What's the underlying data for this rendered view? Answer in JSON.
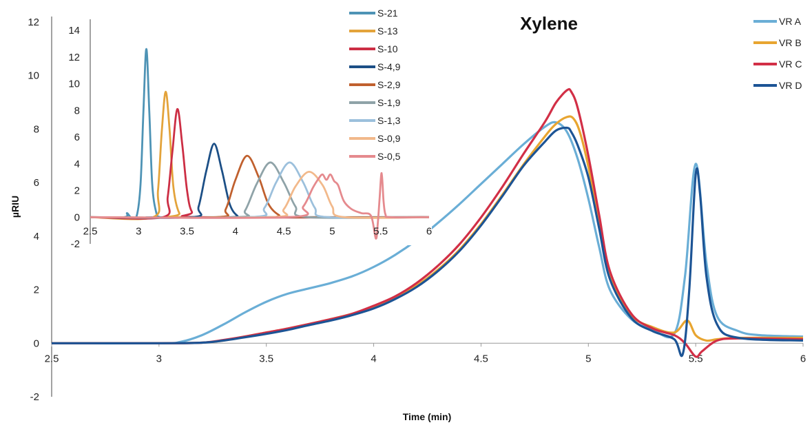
{
  "chart_data": [
    {
      "type": "line",
      "title": "Xylene",
      "xlabel": "Time (min)",
      "ylabel": "µRIU",
      "xlim": [
        2.5,
        6
      ],
      "ylim": [
        -2,
        12
      ],
      "xticks": [
        "2.5",
        "3",
        "3.5",
        "4",
        "4.5",
        "5",
        "5.5",
        "6"
      ],
      "yticks": [
        "-2",
        "0",
        "2",
        "4",
        "6",
        "8",
        "10",
        "12"
      ],
      "legend_position": "top-right",
      "series": [
        {
          "name": "VR A",
          "color": "#6aaed6",
          "x": [
            2.5,
            3.0,
            3.1,
            3.2,
            3.3,
            3.4,
            3.5,
            3.6,
            3.7,
            3.8,
            3.9,
            4.0,
            4.1,
            4.2,
            4.3,
            4.4,
            4.5,
            4.6,
            4.7,
            4.8,
            4.85,
            4.9,
            4.95,
            5.0,
            5.05,
            5.1,
            5.2,
            5.3,
            5.4,
            5.45,
            5.5,
            5.55,
            5.6,
            5.7,
            5.8,
            6.0
          ],
          "values": [
            0,
            0,
            0.05,
            0.3,
            0.7,
            1.15,
            1.55,
            1.85,
            2.05,
            2.25,
            2.5,
            2.85,
            3.3,
            3.85,
            4.5,
            5.2,
            5.95,
            6.7,
            7.45,
            8.1,
            8.25,
            7.9,
            6.9,
            5.4,
            3.6,
            2.0,
            0.9,
            0.5,
            0.35,
            2.5,
            6.7,
            3.0,
            1.0,
            0.45,
            0.3,
            0.25
          ]
        },
        {
          "name": "VR B",
          "color": "#e8a530",
          "x": [
            2.5,
            3.0,
            3.2,
            3.3,
            3.4,
            3.5,
            3.6,
            3.7,
            3.8,
            3.9,
            4.0,
            4.1,
            4.2,
            4.3,
            4.4,
            4.5,
            4.6,
            4.7,
            4.8,
            4.85,
            4.9,
            4.93,
            4.96,
            5.0,
            5.05,
            5.1,
            5.2,
            5.3,
            5.4,
            5.46,
            5.5,
            5.55,
            5.6,
            5.7,
            6.0
          ],
          "values": [
            0,
            0,
            0.02,
            0.1,
            0.25,
            0.4,
            0.55,
            0.72,
            0.9,
            1.1,
            1.35,
            1.7,
            2.15,
            2.75,
            3.5,
            4.45,
            5.55,
            6.7,
            7.75,
            8.2,
            8.45,
            8.4,
            7.9,
            6.6,
            4.5,
            2.5,
            1.05,
            0.6,
            0.4,
            0.85,
            0.3,
            0.1,
            0.15,
            0.2,
            0.2
          ]
        },
        {
          "name": "VR C",
          "color": "#d22f46",
          "x": [
            2.5,
            3.0,
            3.2,
            3.3,
            3.4,
            3.5,
            3.6,
            3.7,
            3.8,
            3.9,
            4.0,
            4.1,
            4.2,
            4.3,
            4.4,
            4.5,
            4.6,
            4.7,
            4.8,
            4.85,
            4.9,
            4.92,
            4.95,
            5.0,
            5.05,
            5.1,
            5.2,
            5.3,
            5.4,
            5.45,
            5.5,
            5.53,
            5.6,
            5.7,
            6.0
          ],
          "values": [
            0,
            0,
            0.02,
            0.12,
            0.25,
            0.4,
            0.55,
            0.72,
            0.9,
            1.1,
            1.4,
            1.75,
            2.25,
            2.9,
            3.7,
            4.7,
            5.85,
            7.1,
            8.3,
            9.0,
            9.45,
            9.4,
            8.8,
            7.0,
            4.8,
            2.7,
            1.1,
            0.55,
            0.3,
            0.0,
            -0.5,
            -0.3,
            0.1,
            0.18,
            0.15
          ]
        },
        {
          "name": "VR D",
          "color": "#1c5495",
          "x": [
            2.5,
            3.0,
            3.2,
            3.3,
            3.4,
            3.5,
            3.6,
            3.7,
            3.8,
            3.9,
            4.0,
            4.1,
            4.2,
            4.3,
            4.4,
            4.5,
            4.6,
            4.7,
            4.8,
            4.85,
            4.9,
            4.92,
            4.95,
            5.0,
            5.05,
            5.1,
            5.2,
            5.3,
            5.4,
            5.44,
            5.47,
            5.5,
            5.52,
            5.55,
            5.6,
            5.7,
            6.0
          ],
          "values": [
            0,
            0,
            0.02,
            0.1,
            0.22,
            0.35,
            0.5,
            0.68,
            0.85,
            1.05,
            1.3,
            1.65,
            2.1,
            2.7,
            3.45,
            4.4,
            5.5,
            6.65,
            7.55,
            7.95,
            8.05,
            7.9,
            7.4,
            6.2,
            4.3,
            2.4,
            0.95,
            0.45,
            0.15,
            -0.4,
            2.0,
            6.3,
            5.6,
            2.5,
            0.7,
            0.2,
            0.1
          ]
        }
      ]
    },
    {
      "type": "line",
      "title": "",
      "xlabel": "",
      "ylabel": "",
      "xlim": [
        2.5,
        6
      ],
      "ylim": [
        -2,
        14
      ],
      "xticks": [
        "2.5",
        "3",
        "3.5",
        "4",
        "4.5",
        "5",
        "5.5",
        "6"
      ],
      "yticks": [
        "-2",
        "0",
        "2",
        "4",
        "6",
        "8",
        "10",
        "12",
        "14"
      ],
      "legend_position": "top-right",
      "series": [
        {
          "name": "S-21",
          "color": "#4e93b5",
          "x": [
            2.5,
            2.85,
            2.88,
            2.92,
            2.98,
            3.02,
            3.05,
            3.08,
            3.11,
            3.14,
            3.18,
            3.22,
            3.3,
            6.0
          ],
          "values": [
            0,
            0,
            0.3,
            0,
            0.1,
            2.5,
            8.0,
            12.6,
            8.0,
            2.5,
            0.4,
            0,
            0,
            0
          ]
        },
        {
          "name": "S-13",
          "color": "#e3a33b",
          "x": [
            2.5,
            3.15,
            3.2,
            3.24,
            3.28,
            3.32,
            3.36,
            3.42,
            3.5,
            6.0
          ],
          "values": [
            0,
            0,
            2.0,
            6.5,
            9.4,
            6.5,
            2.2,
            0.3,
            0,
            0
          ]
        },
        {
          "name": "S-10",
          "color": "#cc2e44",
          "x": [
            2.5,
            3.25,
            3.3,
            3.35,
            3.4,
            3.45,
            3.5,
            3.55,
            3.65,
            6.0
          ],
          "values": [
            0,
            0,
            1.5,
            5.0,
            8.1,
            5.5,
            2.0,
            0.4,
            0,
            0
          ]
        },
        {
          "name": "S-4,9",
          "color": "#1c4f86",
          "x": [
            2.5,
            3.55,
            3.62,
            3.7,
            3.78,
            3.86,
            3.94,
            4.02,
            4.1,
            6.0
          ],
          "values": [
            0,
            0,
            0.8,
            3.5,
            5.5,
            3.5,
            1.0,
            0.1,
            0,
            0
          ]
        },
        {
          "name": "S-2,9",
          "color": "#c0602e",
          "x": [
            2.5,
            3.8,
            3.9,
            4.0,
            4.12,
            4.24,
            4.34,
            4.45,
            4.55,
            6.0
          ],
          "values": [
            0,
            0,
            0.6,
            2.8,
            4.6,
            3.0,
            1.0,
            0.15,
            0,
            0
          ]
        },
        {
          "name": "S-1,9",
          "color": "#8fa3a8",
          "x": [
            2.5,
            4.0,
            4.1,
            4.22,
            4.36,
            4.5,
            4.62,
            4.75,
            6.0
          ],
          "values": [
            0,
            0,
            0.5,
            2.5,
            4.1,
            2.6,
            0.8,
            0,
            0
          ]
        },
        {
          "name": "S-1,3",
          "color": "#9cc0dc",
          "x": [
            2.5,
            4.15,
            4.3,
            4.42,
            4.56,
            4.7,
            4.82,
            4.95,
            6.0
          ],
          "values": [
            0,
            0,
            0.7,
            2.6,
            4.1,
            2.6,
            0.7,
            0,
            0
          ]
        },
        {
          "name": "S-0,9",
          "color": "#f2b98b",
          "x": [
            2.5,
            4.35,
            4.5,
            4.62,
            4.76,
            4.9,
            5.0,
            5.12,
            6.0
          ],
          "values": [
            0,
            0,
            0.6,
            2.3,
            3.4,
            2.4,
            0.8,
            0,
            0
          ]
        },
        {
          "name": "S-0,5",
          "color": "#e58a8e",
          "x": [
            2.5,
            4.55,
            4.7,
            4.8,
            4.86,
            4.9,
            4.94,
            4.98,
            5.02,
            5.06,
            5.12,
            5.2,
            5.3,
            5.4,
            5.45,
            5.47,
            5.49,
            5.51,
            5.53,
            5.55,
            5.6,
            6.0
          ],
          "values": [
            0,
            0,
            0.8,
            2.2,
            2.9,
            3.2,
            2.8,
            3.2,
            2.7,
            2.4,
            1.2,
            0.6,
            0.3,
            0.1,
            -1.6,
            -0.5,
            1.5,
            3.3,
            1.2,
            0.2,
            0,
            0
          ]
        }
      ]
    }
  ]
}
